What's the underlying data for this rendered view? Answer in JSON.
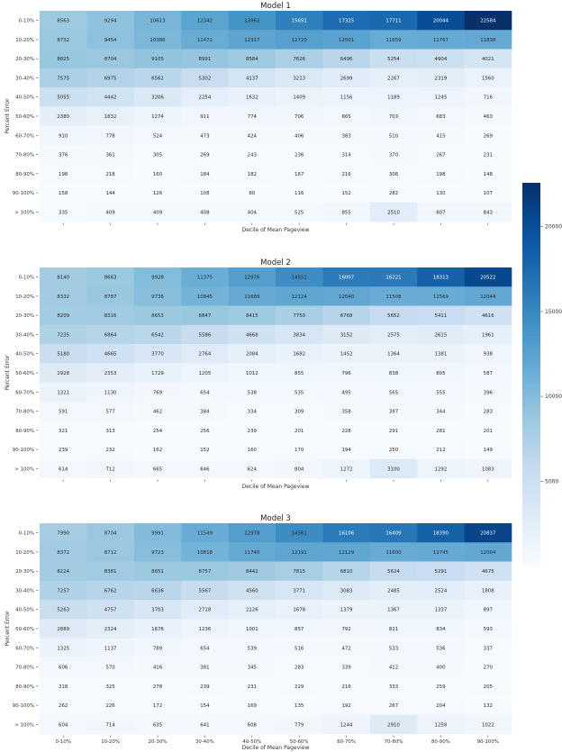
{
  "chart_data": [
    {
      "type": "heatmap",
      "title": "Model 1",
      "xlabel": "Decile of Mean Pageview",
      "ylabel": "Percent Error",
      "x_tick_labels_shown": false,
      "categories_x": [
        "0-10%",
        "10-20%",
        "20-30%",
        "30-40%",
        "40-50%",
        "50-60%",
        "60-70%",
        "70-80%",
        "80-90%",
        "90-100%"
      ],
      "categories_y": [
        "0-10%",
        "10-20%",
        "20-30%",
        "30-40%",
        "40-50%",
        "50-60%",
        "60-70%",
        "70-80%",
        "80-90%",
        "90-100%",
        "> 100%"
      ],
      "values": [
        [
          8563,
          9294,
          10613,
          12342,
          13962,
          15691,
          17325,
          17711,
          20044,
          22584
        ],
        [
          8732,
          9454,
          10386,
          11472,
          12317,
          12720,
          12501,
          11659,
          11767,
          11838
        ],
        [
          8825,
          8704,
          9105,
          8991,
          8584,
          7626,
          6496,
          5254,
          4904,
          4021
        ],
        [
          7575,
          6975,
          6562,
          5302,
          4137,
          3213,
          2699,
          2267,
          2319,
          1560
        ],
        [
          5055,
          4442,
          3206,
          2254,
          1632,
          1409,
          1156,
          1189,
          1245,
          716
        ],
        [
          2380,
          1832,
          1274,
          911,
          774,
          706,
          665,
          703,
          683,
          463
        ],
        [
          910,
          778,
          524,
          473,
          424,
          406,
          383,
          510,
          415,
          269
        ],
        [
          376,
          361,
          305,
          269,
          243,
          236,
          314,
          370,
          267,
          231
        ],
        [
          198,
          218,
          160,
          184,
          182,
          167,
          216,
          306,
          198,
          148
        ],
        [
          158,
          144,
          126,
          108,
          80,
          116,
          152,
          282,
          130,
          107
        ],
        [
          335,
          409,
          409,
          408,
          404,
          525,
          855,
          2510,
          807,
          843
        ]
      ]
    },
    {
      "type": "heatmap",
      "title": "Model 2",
      "xlabel": "Decile of Mean Pageview",
      "ylabel": "Percent Error",
      "x_tick_labels_shown": false,
      "categories_x": [
        "0-10%",
        "10-20%",
        "20-30%",
        "30-40%",
        "40-50%",
        "50-60%",
        "60-70%",
        "70-80%",
        "80-90%",
        "90-100%"
      ],
      "categories_y": [
        "0-10%",
        "10-20%",
        "20-30%",
        "30-40%",
        "40-50%",
        "50-60%",
        "60-70%",
        "70-80%",
        "80-90%",
        "90-100%",
        "> 100%"
      ],
      "values": [
        [
          8140,
          8663,
          9928,
          11375,
          12976,
          14551,
          16007,
          16221,
          18313,
          20522
        ],
        [
          8332,
          8787,
          9736,
          10845,
          11689,
          12124,
          12040,
          11508,
          11569,
          12044
        ],
        [
          8209,
          8316,
          8653,
          8847,
          8415,
          7750,
          6768,
          5652,
          5411,
          4616
        ],
        [
          7235,
          6864,
          6542,
          5586,
          4668,
          3834,
          3152,
          2575,
          2615,
          1961
        ],
        [
          5180,
          4665,
          3770,
          2764,
          2084,
          1682,
          1452,
          1364,
          1381,
          938
        ],
        [
          2928,
          2353,
          1729,
          1205,
          1012,
          855,
          796,
          838,
          805,
          587
        ],
        [
          1321,
          1130,
          769,
          654,
          538,
          535,
          495,
          565,
          555,
          396
        ],
        [
          591,
          577,
          462,
          384,
          334,
          309,
          358,
          397,
          344,
          283
        ],
        [
          321,
          313,
          254,
          256,
          239,
          201,
          228,
          291,
          281,
          201
        ],
        [
          239,
          232,
          162,
          152,
          160,
          170,
          194,
          250,
          212,
          149
        ],
        [
          614,
          712,
          665,
          646,
          624,
          804,
          1272,
          3100,
          1292,
          1083
        ]
      ]
    },
    {
      "type": "heatmap",
      "title": "Model 3",
      "xlabel": "Decile of Mean Pageview",
      "ylabel": "Percent Error",
      "x_tick_labels_shown": true,
      "categories_x": [
        "0-10%",
        "10-20%",
        "20-30%",
        "30-40%",
        "40-50%",
        "50-60%",
        "60-70%",
        "70-80%",
        "80-90%",
        "90-100%"
      ],
      "categories_y": [
        "0-10%",
        "10-20%",
        "20-30%",
        "30-40%",
        "40-50%",
        "50-60%",
        "60-70%",
        "70-80%",
        "80-90%",
        "90-100%",
        "> 100%"
      ],
      "values": [
        [
          7990,
          8704,
          9991,
          11549,
          12978,
          14561,
          16106,
          16409,
          18390,
          20837
        ],
        [
          8372,
          8712,
          9723,
          10818,
          11740,
          12191,
          12129,
          11600,
          11745,
          12004
        ],
        [
          8224,
          8381,
          8651,
          8757,
          8442,
          7815,
          6810,
          5624,
          5291,
          4675
        ],
        [
          7257,
          6762,
          6636,
          5567,
          4560,
          3771,
          3083,
          2485,
          2524,
          1808
        ],
        [
          5263,
          4757,
          3703,
          2718,
          2126,
          1678,
          1379,
          1367,
          1337,
          897
        ],
        [
          2889,
          2324,
          1676,
          1236,
          1001,
          857,
          792,
          821,
          834,
          593
        ],
        [
          1325,
          1137,
          789,
          654,
          539,
          516,
          472,
          533,
          536,
          337
        ],
        [
          606,
          570,
          416,
          381,
          345,
          283,
          339,
          412,
          400,
          270
        ],
        [
          318,
          325,
          278,
          239,
          231,
          229,
          216,
          333,
          259,
          205
        ],
        [
          262,
          226,
          172,
          154,
          169,
          135,
          192,
          267,
          204,
          132
        ],
        [
          604,
          714,
          635,
          641,
          608,
          779,
          1244,
          2910,
          1258,
          1022
        ]
      ]
    }
  ],
  "colorbar": {
    "colormap": "Blues",
    "vmin": 80,
    "vmax": 22584,
    "ticks": [
      5000,
      10000,
      15000,
      20000
    ],
    "tick_labels": [
      "5000",
      "10000",
      "15000",
      "20000"
    ]
  }
}
